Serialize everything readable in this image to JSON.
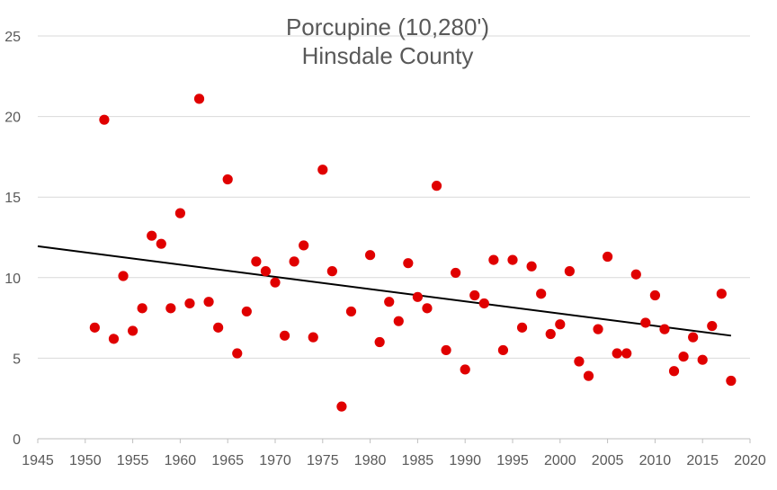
{
  "chart_data": {
    "type": "scatter",
    "title": [
      "Porcupine (10,280')",
      "Hinsdale County"
    ],
    "xlabel": "",
    "ylabel": "",
    "xlim": [
      1945,
      2020
    ],
    "ylim": [
      0,
      25
    ],
    "x_ticks": [
      "1945",
      "1950",
      "1955",
      "1960",
      "1965",
      "1970",
      "1975",
      "1980",
      "1985",
      "1990",
      "1995",
      "2000",
      "2005",
      "2010",
      "2015",
      "2020"
    ],
    "y_ticks": [
      "0",
      "5",
      "10",
      "15",
      "20",
      "25"
    ],
    "grid": "horizontal",
    "legend": "none",
    "colors": {
      "points": "#e00000",
      "trend": "#000000",
      "grid": "#d9d9d9",
      "text": "#595959"
    },
    "series": [
      {
        "x": [
          1951,
          1952,
          1953,
          1954,
          1955,
          1956,
          1957,
          1958,
          1959,
          1960,
          1961,
          1962,
          1963,
          1964,
          1965,
          1966,
          1967,
          1968,
          1969,
          1970,
          1971,
          1972,
          1973,
          1974,
          1975,
          1976,
          1977,
          1978,
          1980,
          1981,
          1982,
          1983,
          1984,
          1985,
          1986,
          1987,
          1988,
          1989,
          1990,
          1991,
          1992,
          1993,
          1994,
          1995,
          1996,
          1997,
          1998,
          1999,
          2000,
          2001,
          2002,
          2003,
          2004,
          2005,
          2006,
          2007,
          2008,
          2009,
          2010,
          2011,
          2012,
          2013,
          2014,
          2015,
          2016,
          2017,
          2018
        ],
        "y": [
          6.9,
          19.8,
          6.2,
          10.1,
          6.7,
          8.1,
          12.6,
          12.1,
          8.1,
          14.0,
          8.4,
          21.1,
          8.5,
          6.9,
          16.1,
          5.3,
          7.9,
          11.0,
          10.4,
          9.7,
          6.4,
          11.0,
          12.0,
          6.3,
          16.7,
          10.4,
          2.0,
          7.9,
          11.4,
          6.0,
          8.5,
          7.3,
          10.9,
          8.8,
          8.1,
          15.7,
          5.5,
          10.3,
          4.3,
          8.9,
          8.4,
          11.1,
          5.5,
          11.1,
          6.9,
          10.7,
          9.0,
          6.5,
          7.1,
          10.4,
          4.8,
          3.9,
          6.8,
          11.3,
          5.3,
          5.3,
          10.2,
          7.2,
          8.9,
          6.8,
          4.2,
          5.1,
          6.3,
          4.9,
          7.0,
          9.0,
          3.6
        ]
      }
    ],
    "trendline": {
      "type": "linear",
      "x": [
        1945,
        2018
      ],
      "y": [
        11.95,
        6.4
      ]
    }
  }
}
